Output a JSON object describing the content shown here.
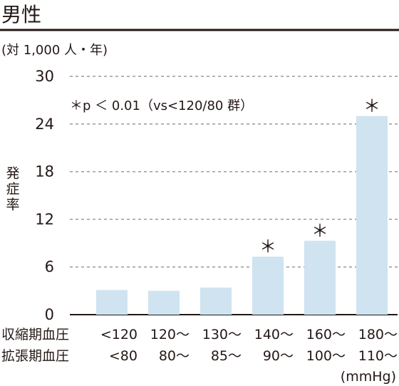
{
  "chart_data": {
    "type": "bar",
    "title": "男性",
    "unit_label": "(対 1,000 人・年)",
    "ylabel": "発症率",
    "ylim": [
      0,
      30
    ],
    "yticks": [
      0,
      6,
      12,
      18,
      24,
      30
    ],
    "grid": true,
    "annotation": "＊p ＜ 0.01（vs<120/80 群）",
    "categories": [
      {
        "sbp": "<120",
        "dbp": "<80"
      },
      {
        "sbp": "120～",
        "dbp": "80～"
      },
      {
        "sbp": "130～",
        "dbp": "85～"
      },
      {
        "sbp": "140～",
        "dbp": "90～"
      },
      {
        "sbp": "160～",
        "dbp": "100～"
      },
      {
        "sbp": "180～",
        "dbp": "110～"
      }
    ],
    "values": [
      3.1,
      3.0,
      3.4,
      7.3,
      9.3,
      25.0
    ],
    "significant": [
      false,
      false,
      false,
      true,
      true,
      true
    ],
    "significance_marker": "＊",
    "row_labels": {
      "sbp": "収縮期血圧",
      "dbp": "拡張期血圧"
    },
    "unit": "(mmHg)",
    "colors": {
      "bar": "#cfe3f0",
      "text": "#231815",
      "grid": "#9a9a9a"
    }
  }
}
